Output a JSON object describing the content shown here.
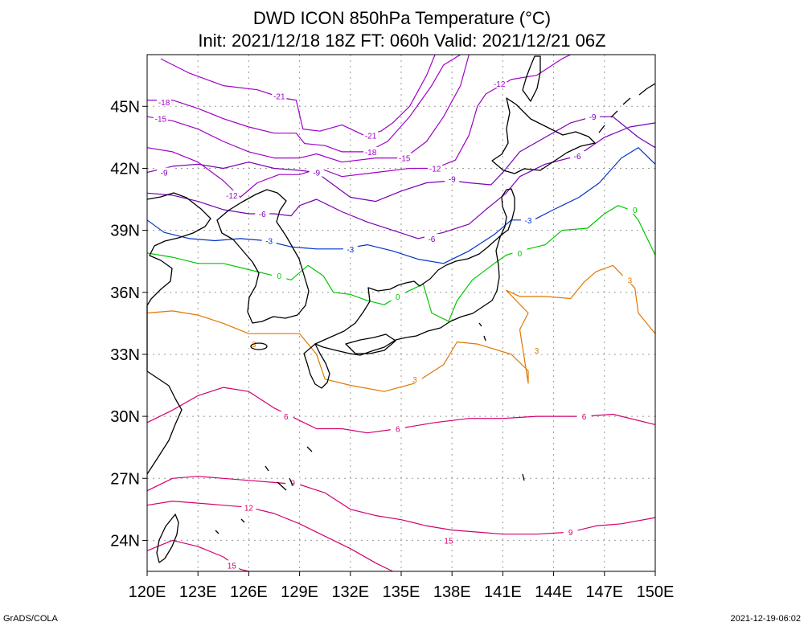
{
  "title": {
    "line1": "DWD ICON 850hPa Temperature (°C)",
    "line2": "Init: 2021/12/18 18Z  FT: 060h  Valid: 2021/12/21 06Z"
  },
  "map": {
    "lon_range": [
      120,
      150
    ],
    "lat_range": [
      22.5,
      47.5
    ],
    "x_ticks": [
      {
        "value": 120,
        "label": "120E"
      },
      {
        "value": 123,
        "label": "123E"
      },
      {
        "value": 126,
        "label": "126E"
      },
      {
        "value": 129,
        "label": "129E"
      },
      {
        "value": 132,
        "label": "132E"
      },
      {
        "value": 135,
        "label": "135E"
      },
      {
        "value": 138,
        "label": "138E"
      },
      {
        "value": 141,
        "label": "141E"
      },
      {
        "value": 144,
        "label": "144E"
      },
      {
        "value": 147,
        "label": "147E"
      },
      {
        "value": 150,
        "label": "150E"
      }
    ],
    "y_ticks": [
      {
        "value": 24,
        "label": "24N"
      },
      {
        "value": 27,
        "label": "27N"
      },
      {
        "value": 30,
        "label": "30N"
      },
      {
        "value": 33,
        "label": "33N"
      },
      {
        "value": 36,
        "label": "36N"
      },
      {
        "value": 39,
        "label": "39N"
      },
      {
        "value": 42,
        "label": "42N"
      },
      {
        "value": 45,
        "label": "45N"
      }
    ],
    "grid": "dotted"
  },
  "contours": [
    {
      "level": -21,
      "color": "#a000c8",
      "labels": [
        {
          "text": "-21",
          "lon": 127.8,
          "lat": 45.5
        },
        {
          "text": "-21",
          "lon": 133.2,
          "lat": 43.6
        }
      ],
      "points": [
        [
          120.8,
          47.3
        ],
        [
          122.5,
          46.6
        ],
        [
          124.5,
          46.0
        ],
        [
          126.5,
          45.8
        ],
        [
          128.0,
          45.4
        ],
        [
          128.8,
          45.3
        ],
        [
          129.2,
          43.9
        ],
        [
          130.2,
          43.8
        ],
        [
          131.5,
          44.1
        ],
        [
          132.8,
          43.6
        ],
        [
          133.8,
          43.8
        ],
        [
          134.5,
          44.2
        ],
        [
          135.5,
          45.0
        ],
        [
          136.5,
          46.5
        ],
        [
          137.0,
          47.5
        ]
      ]
    },
    {
      "level": -18,
      "color": "#a000c8",
      "labels": [
        {
          "text": "-18",
          "lon": 121.0,
          "lat": 45.2
        },
        {
          "text": "-18",
          "lon": 133.2,
          "lat": 42.8
        }
      ],
      "points": [
        [
          120.0,
          45.3
        ],
        [
          121.5,
          45.3
        ],
        [
          123.0,
          44.9
        ],
        [
          124.5,
          44.4
        ],
        [
          126.0,
          44.0
        ],
        [
          127.5,
          43.7
        ],
        [
          128.8,
          43.7
        ],
        [
          129.3,
          43.2
        ],
        [
          130.5,
          43.1
        ],
        [
          131.5,
          42.8
        ],
        [
          133.0,
          42.8
        ],
        [
          134.2,
          43.3
        ],
        [
          135.5,
          44.5
        ],
        [
          136.8,
          46.0
        ],
        [
          137.5,
          47.0
        ],
        [
          138.5,
          47.5
        ]
      ]
    },
    {
      "level": -15,
      "color": "#a000c8",
      "labels": [
        {
          "text": "-15",
          "lon": 120.8,
          "lat": 44.4
        },
        {
          "text": "-15",
          "lon": 135.2,
          "lat": 42.5
        }
      ],
      "points": [
        [
          120.0,
          44.5
        ],
        [
          121.5,
          44.3
        ],
        [
          123.0,
          43.9
        ],
        [
          124.5,
          43.3
        ],
        [
          126.0,
          42.8
        ],
        [
          127.5,
          42.5
        ],
        [
          129.0,
          42.5
        ],
        [
          130.0,
          42.7
        ],
        [
          131.5,
          42.3
        ],
        [
          133.5,
          42.5
        ],
        [
          135.2,
          42.5
        ],
        [
          136.5,
          43.3
        ],
        [
          137.5,
          44.5
        ],
        [
          138.5,
          46.0
        ],
        [
          139.0,
          47.5
        ]
      ]
    },
    {
      "level": -12,
      "color": "#a000c8",
      "labels": [
        {
          "text": "-12",
          "lon": 125.0,
          "lat": 40.7
        },
        {
          "text": "-12",
          "lon": 137.0,
          "lat": 42.0
        },
        {
          "text": "-12",
          "lon": 140.8,
          "lat": 46.1
        }
      ],
      "points": [
        [
          120.0,
          43.0
        ],
        [
          121.5,
          42.8
        ],
        [
          123.0,
          42.3
        ],
        [
          124.5,
          41.4
        ],
        [
          125.5,
          40.6
        ],
        [
          126.5,
          41.3
        ],
        [
          127.8,
          41.7
        ],
        [
          129.0,
          41.7
        ],
        [
          130.2,
          42.0
        ],
        [
          131.5,
          41.6
        ],
        [
          133.5,
          41.8
        ],
        [
          135.5,
          42.0
        ],
        [
          137.0,
          42.0
        ],
        [
          138.2,
          42.4
        ],
        [
          139.0,
          43.6
        ],
        [
          139.5,
          45.0
        ],
        [
          140.0,
          45.6
        ],
        [
          141.5,
          46.3
        ],
        [
          143.0,
          46.5
        ],
        [
          144.5,
          47.3
        ],
        [
          145.0,
          47.5
        ]
      ]
    },
    {
      "level": -9,
      "color": "#7a00b4",
      "labels": [
        {
          "text": "-9",
          "lon": 121.0,
          "lat": 41.8
        },
        {
          "text": "-9",
          "lon": 130.0,
          "lat": 41.8
        },
        {
          "text": "-9",
          "lon": 138.0,
          "lat": 41.5
        },
        {
          "text": "-9",
          "lon": 146.3,
          "lat": 44.5
        }
      ],
      "points": [
        [
          120.0,
          41.8
        ],
        [
          121.5,
          42.1
        ],
        [
          123.0,
          42.2
        ],
        [
          124.5,
          42.0
        ],
        [
          126.0,
          42.3
        ],
        [
          127.5,
          42.0
        ],
        [
          129.0,
          41.9
        ],
        [
          130.0,
          41.8
        ],
        [
          131.0,
          41.2
        ],
        [
          132.0,
          40.6
        ],
        [
          133.5,
          40.4
        ],
        [
          135.0,
          40.9
        ],
        [
          136.5,
          41.3
        ],
        [
          138.0,
          41.4
        ],
        [
          139.0,
          41.3
        ],
        [
          140.3,
          41.2
        ],
        [
          141.0,
          41.8
        ],
        [
          142.0,
          42.8
        ],
        [
          143.5,
          43.5
        ],
        [
          145.0,
          44.2
        ],
        [
          146.3,
          44.5
        ],
        [
          147.5,
          44.5
        ],
        [
          149.0,
          43.5
        ],
        [
          150.0,
          43.0
        ]
      ]
    },
    {
      "level": -6,
      "color": "#7a00b4",
      "labels": [
        {
          "text": "-6",
          "lon": 126.8,
          "lat": 39.8
        },
        {
          "text": "-6",
          "lon": 136.8,
          "lat": 38.6
        },
        {
          "text": "-6",
          "lon": 145.4,
          "lat": 42.6
        }
      ],
      "points": [
        [
          120.0,
          40.8
        ],
        [
          121.5,
          40.7
        ],
        [
          123.0,
          40.4
        ],
        [
          124.5,
          40.0
        ],
        [
          126.0,
          39.8
        ],
        [
          127.5,
          39.8
        ],
        [
          128.5,
          39.7
        ],
        [
          129.0,
          40.2
        ],
        [
          130.0,
          40.5
        ],
        [
          131.5,
          39.9
        ],
        [
          133.0,
          39.4
        ],
        [
          134.5,
          39.0
        ],
        [
          136.0,
          38.6
        ],
        [
          137.5,
          38.9
        ],
        [
          139.0,
          39.3
        ],
        [
          140.0,
          40.0
        ],
        [
          141.2,
          40.8
        ],
        [
          142.0,
          41.6
        ],
        [
          143.5,
          42.2
        ],
        [
          145.4,
          42.6
        ],
        [
          147.0,
          43.5
        ],
        [
          148.5,
          44.0
        ],
        [
          150.0,
          44.2
        ]
      ]
    },
    {
      "level": -3,
      "color": "#0032c8",
      "labels": [
        {
          "text": "-3",
          "lon": 127.2,
          "lat": 38.5
        },
        {
          "text": "-3",
          "lon": 132.0,
          "lat": 38.1
        },
        {
          "text": "-3",
          "lon": 142.5,
          "lat": 39.5
        }
      ],
      "points": [
        [
          120.0,
          39.5
        ],
        [
          121.0,
          38.9
        ],
        [
          122.5,
          38.6
        ],
        [
          124.0,
          38.5
        ],
        [
          125.5,
          38.6
        ],
        [
          127.0,
          38.5
        ],
        [
          128.5,
          38.2
        ],
        [
          130.0,
          38.1
        ],
        [
          131.5,
          38.1
        ],
        [
          133.0,
          38.3
        ],
        [
          134.5,
          38.0
        ],
        [
          136.0,
          37.6
        ],
        [
          137.5,
          37.4
        ],
        [
          139.0,
          38.0
        ],
        [
          140.5,
          38.8
        ],
        [
          141.5,
          39.5
        ],
        [
          142.8,
          39.5
        ],
        [
          144.0,
          40.0
        ],
        [
          145.5,
          40.6
        ],
        [
          146.7,
          41.3
        ],
        [
          148.0,
          42.5
        ],
        [
          149.0,
          43.0
        ],
        [
          150.0,
          42.2
        ]
      ]
    },
    {
      "level": 0,
      "color": "#00c800",
      "labels": [
        {
          "text": "0",
          "lon": 127.8,
          "lat": 36.8
        },
        {
          "text": "0",
          "lon": 134.8,
          "lat": 35.8
        },
        {
          "text": "0",
          "lon": 142.0,
          "lat": 37.9
        },
        {
          "text": "0",
          "lon": 148.8,
          "lat": 40.0
        }
      ],
      "points": [
        [
          120.0,
          37.9
        ],
        [
          121.5,
          37.7
        ],
        [
          123.0,
          37.4
        ],
        [
          124.5,
          37.4
        ],
        [
          126.0,
          37.1
        ],
        [
          127.5,
          36.8
        ],
        [
          128.5,
          36.6
        ],
        [
          129.5,
          37.3
        ],
        [
          130.4,
          36.8
        ],
        [
          131.0,
          36.0
        ],
        [
          132.0,
          35.9
        ],
        [
          133.0,
          35.6
        ],
        [
          134.0,
          35.4
        ],
        [
          135.0,
          35.9
        ],
        [
          136.3,
          36.4
        ],
        [
          136.8,
          35.0
        ],
        [
          137.8,
          34.6
        ],
        [
          138.3,
          35.6
        ],
        [
          139.2,
          36.6
        ],
        [
          140.5,
          37.4
        ],
        [
          141.2,
          37.8
        ],
        [
          142.0,
          38.0
        ],
        [
          143.5,
          38.3
        ],
        [
          144.5,
          39.0
        ],
        [
          146.0,
          39.1
        ],
        [
          147.0,
          39.8
        ],
        [
          147.8,
          40.2
        ],
        [
          148.5,
          40.0
        ],
        [
          149.0,
          39.5
        ],
        [
          150.0,
          37.8
        ]
      ]
    },
    {
      "level": 3,
      "color": "#e07800",
      "labels": [
        {
          "text": "3",
          "lon": 126.3,
          "lat": 33.5
        },
        {
          "text": "3",
          "lon": 135.8,
          "lat": 31.8
        },
        {
          "text": "3",
          "lon": 143.0,
          "lat": 33.2
        },
        {
          "text": "3",
          "lon": 148.5,
          "lat": 36.6
        }
      ],
      "points": [
        [
          120.0,
          35.0
        ],
        [
          121.5,
          35.1
        ],
        [
          123.0,
          34.9
        ],
        [
          124.5,
          34.5
        ],
        [
          126.0,
          34.0
        ],
        [
          127.5,
          34.0
        ],
        [
          129.0,
          34.0
        ],
        [
          130.0,
          33.0
        ],
        [
          130.5,
          31.8
        ],
        [
          132.0,
          31.5
        ],
        [
          134.0,
          31.2
        ],
        [
          135.8,
          31.6
        ],
        [
          137.5,
          32.5
        ],
        [
          138.3,
          33.6
        ],
        [
          139.5,
          33.5
        ],
        [
          141.5,
          33.0
        ],
        [
          142.5,
          32.2
        ],
        [
          142.5,
          31.6
        ],
        [
          142.0,
          34.2
        ],
        [
          142.5,
          35.0
        ],
        [
          141.2,
          36.1
        ],
        [
          142.0,
          35.8
        ],
        [
          143.5,
          35.8
        ],
        [
          145.0,
          35.7
        ],
        [
          145.8,
          36.5
        ],
        [
          146.5,
          37.0
        ],
        [
          147.5,
          37.3
        ],
        [
          148.8,
          36.2
        ],
        [
          149.0,
          35.0
        ],
        [
          150.0,
          34.0
        ]
      ]
    },
    {
      "level": 6,
      "color": "#d2006e",
      "labels": [
        {
          "text": "6",
          "lon": 128.2,
          "lat": 30.0
        },
        {
          "text": "6",
          "lon": 134.8,
          "lat": 29.4
        },
        {
          "text": "6",
          "lon": 145.8,
          "lat": 30.0
        }
      ],
      "points": [
        [
          120.0,
          29.7
        ],
        [
          121.5,
          30.3
        ],
        [
          123.0,
          31.0
        ],
        [
          124.5,
          31.4
        ],
        [
          126.0,
          31.2
        ],
        [
          127.5,
          30.4
        ],
        [
          128.5,
          30.0
        ],
        [
          130.0,
          29.4
        ],
        [
          131.5,
          29.4
        ],
        [
          133.0,
          29.2
        ],
        [
          134.8,
          29.4
        ],
        [
          137.0,
          29.7
        ],
        [
          139.0,
          29.9
        ],
        [
          141.0,
          29.9
        ],
        [
          143.0,
          30.0
        ],
        [
          145.8,
          30.0
        ],
        [
          147.5,
          30.1
        ],
        [
          150.0,
          29.6
        ]
      ]
    },
    {
      "level": 9,
      "color": "#d2006e",
      "labels": [
        {
          "text": "9",
          "lon": 128.6,
          "lat": 26.8
        },
        {
          "text": "9",
          "lon": 145.0,
          "lat": 24.4
        }
      ],
      "points": [
        [
          120.0,
          26.4
        ],
        [
          121.5,
          27.0
        ],
        [
          123.0,
          27.1
        ],
        [
          124.5,
          27.0
        ],
        [
          126.0,
          26.9
        ],
        [
          127.5,
          26.8
        ],
        [
          129.0,
          26.7
        ],
        [
          130.5,
          26.3
        ],
        [
          132.0,
          25.5
        ],
        [
          133.5,
          25.2
        ],
        [
          135.0,
          25.0
        ],
        [
          136.5,
          24.7
        ],
        [
          138.0,
          24.5
        ],
        [
          139.5,
          24.4
        ],
        [
          141.0,
          24.3
        ],
        [
          143.0,
          24.3
        ],
        [
          145.0,
          24.4
        ],
        [
          146.5,
          24.7
        ],
        [
          148.0,
          24.8
        ],
        [
          150.0,
          25.1
        ]
      ]
    },
    {
      "level": 12,
      "color": "#d2006e",
      "labels": [
        {
          "text": "12",
          "lon": 126.0,
          "lat": 25.6
        }
      ],
      "points": [
        [
          120.0,
          25.7
        ],
        [
          121.5,
          25.9
        ],
        [
          123.0,
          25.8
        ],
        [
          124.5,
          25.7
        ],
        [
          126.0,
          25.6
        ],
        [
          127.5,
          25.3
        ],
        [
          129.0,
          24.8
        ],
        [
          130.5,
          24.2
        ],
        [
          132.0,
          23.6
        ],
        [
          133.5,
          22.9
        ],
        [
          134.5,
          22.5
        ]
      ]
    },
    {
      "level": 15,
      "color": "#d2006e",
      "labels": [
        {
          "text": "15",
          "lon": 125.0,
          "lat": 22.8
        },
        {
          "text": "15",
          "lon": 137.8,
          "lat": 24.0
        }
      ],
      "points": [
        [
          120.0,
          23.5
        ],
        [
          121.5,
          24.0
        ],
        [
          123.0,
          23.7
        ],
        [
          124.5,
          23.2
        ],
        [
          125.5,
          22.6
        ],
        [
          126.0,
          22.5
        ]
      ]
    }
  ],
  "coastline_color": "#000000",
  "footer": {
    "left": "GrADS/COLA",
    "right": "2021-12-19-06:02"
  }
}
